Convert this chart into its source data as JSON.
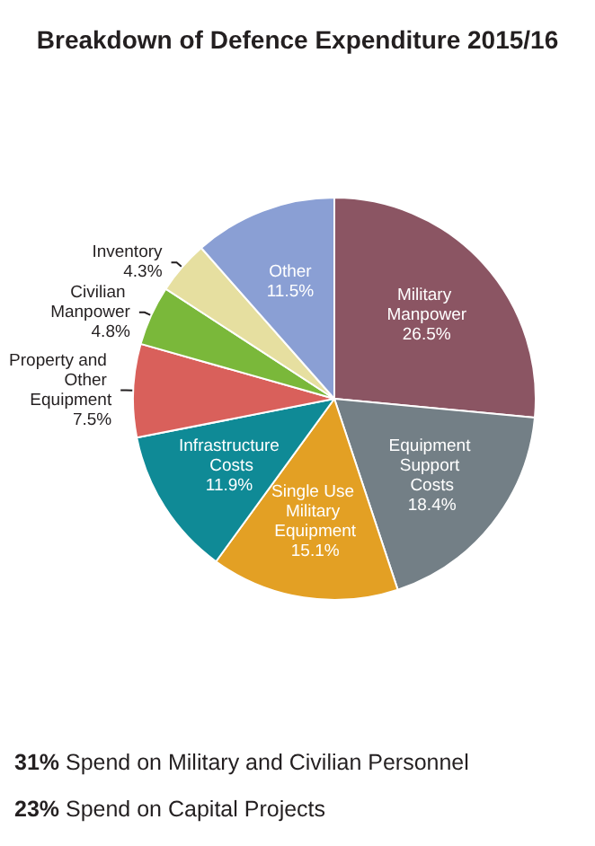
{
  "chart_data": {
    "type": "pie",
    "title": "Breakdown of Defence Expenditure 2015/16",
    "categories": [
      "Military Manpower",
      "Equipment Support Costs",
      "Single Use Military Equipment",
      "Infrastructure Costs",
      "Property and Other Equipment",
      "Civilian Manpower",
      "Inventory",
      "Other"
    ],
    "values": [
      26.5,
      18.4,
      15.1,
      11.9,
      7.5,
      4.8,
      4.3,
      11.5
    ],
    "colors": [
      "#8b5563",
      "#737f86",
      "#e3a024",
      "#0f8a96",
      "#d9605b",
      "#7ab83a",
      "#e6dfa0",
      "#8a9fd4"
    ],
    "value_labels": [
      "26.5%",
      "18.4%",
      "15.1%",
      "11.9%",
      "7.5%",
      "4.8%",
      "4.3%",
      "11.5%"
    ],
    "legend": false,
    "annotations": [
      "31% Spend on Military and Civilian Personnel",
      "23% Spend on Capital Projects"
    ]
  }
}
